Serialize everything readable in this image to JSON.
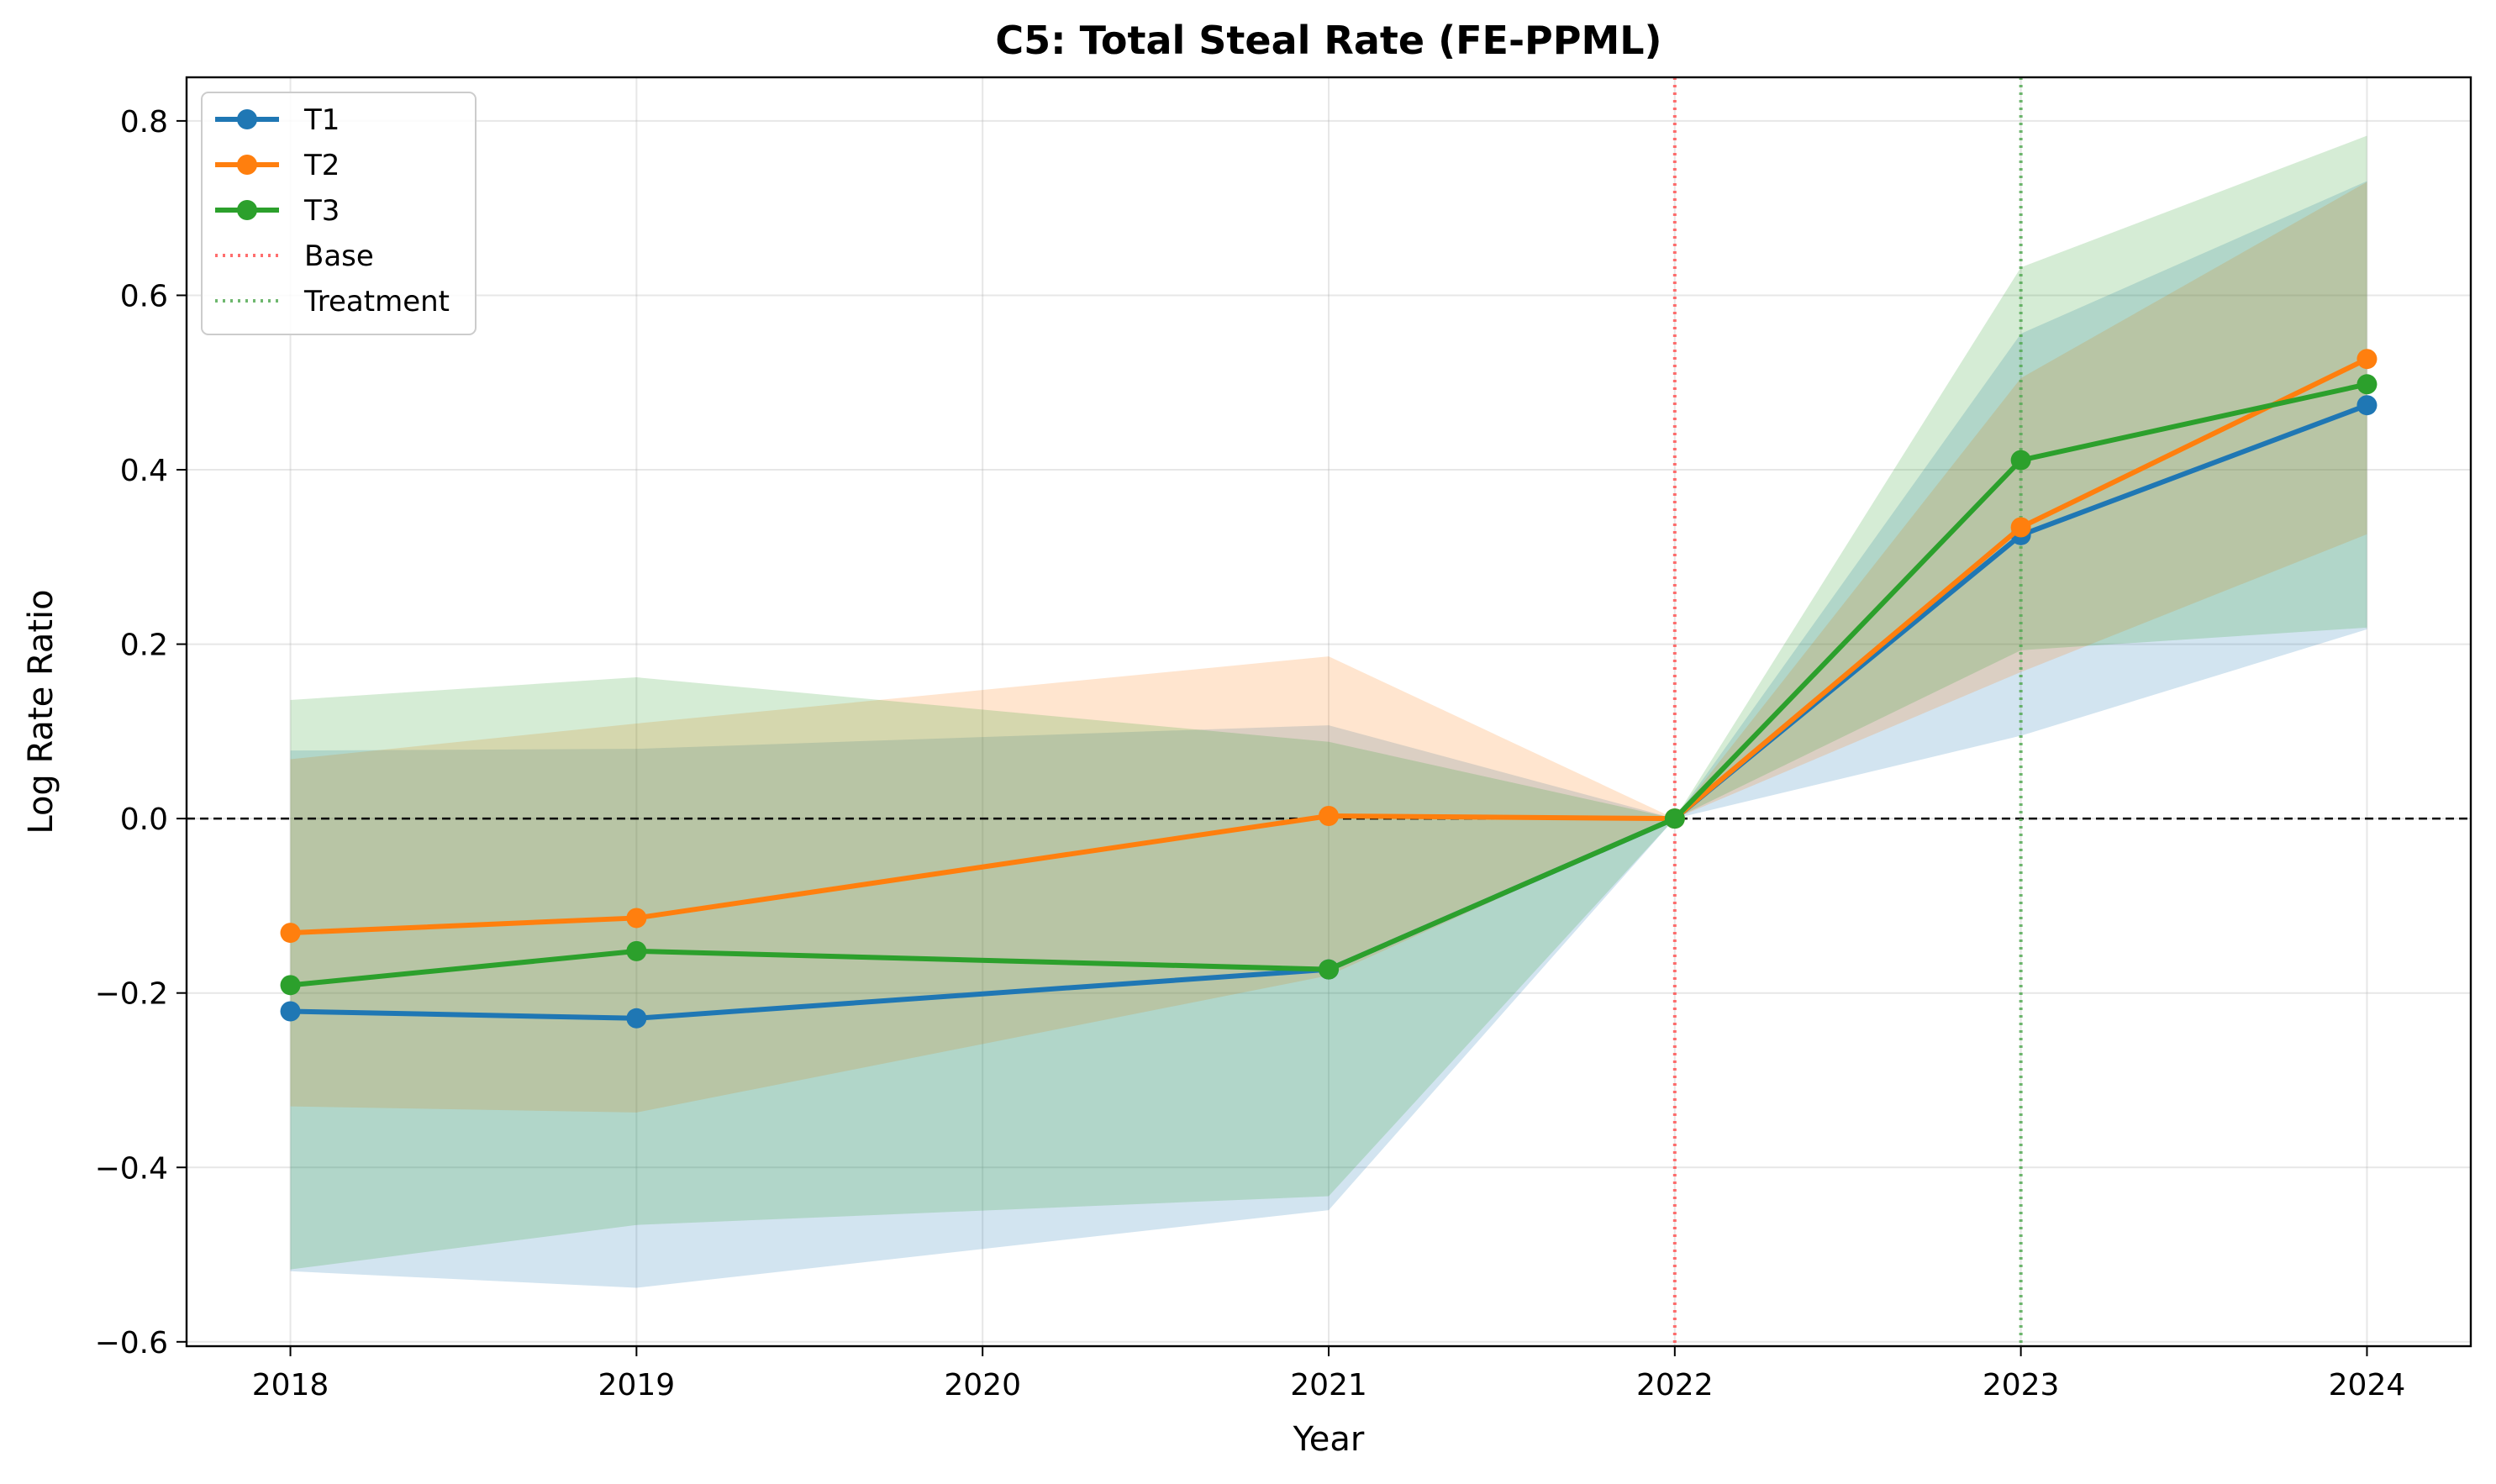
{
  "chart_data": {
    "type": "line",
    "title": "C5: Total Steal Rate (FE-PPML)",
    "xlabel": "Year",
    "ylabel": "Log Rate Ratio",
    "xlim": [
      2017.7,
      2024.3
    ],
    "ylim": [
      -0.605,
      0.85
    ],
    "xticks": [
      2018,
      2019,
      2020,
      2021,
      2022,
      2023,
      2024
    ],
    "xtick_labels": [
      "2018",
      "2019",
      "2020",
      "2021",
      "2022",
      "2023",
      "2024"
    ],
    "yticks": [
      -0.6,
      -0.4,
      -0.2,
      0.0,
      0.2,
      0.4,
      0.6,
      0.8
    ],
    "ytick_labels": [
      "−0.6",
      "−0.4",
      "−0.2",
      "0.0",
      "0.2",
      "0.4",
      "0.6",
      "0.8"
    ],
    "grid": true,
    "legend_position": "upper-left",
    "zero_line": {
      "y": 0,
      "color": "#000000",
      "style": "dashed"
    },
    "vlines": [
      {
        "name": "Base",
        "x": 2022,
        "color": "#ff5555"
      },
      {
        "name": "Treatment",
        "x": 2023,
        "color": "#55aa55"
      }
    ],
    "series": [
      {
        "name": "T1",
        "color": "#1f77b4",
        "x": [
          2018,
          2019,
          2021,
          2022,
          2023,
          2024
        ],
        "y": [
          -0.221,
          -0.229,
          -0.173,
          0.0,
          0.325,
          0.474
        ],
        "ci_lower": [
          -0.519,
          -0.538,
          -0.449,
          0.0,
          0.095,
          0.217
        ],
        "ci_upper": [
          0.078,
          0.08,
          0.107,
          0.0,
          0.556,
          0.731
        ]
      },
      {
        "name": "T2",
        "color": "#ff7f0e",
        "x": [
          2018,
          2019,
          2021,
          2022,
          2023,
          2024
        ],
        "y": [
          -0.131,
          -0.114,
          0.003,
          0.0,
          0.334,
          0.527
        ],
        "ci_lower": [
          -0.33,
          -0.337,
          -0.18,
          0.0,
          0.168,
          0.326
        ],
        "ci_upper": [
          0.068,
          0.109,
          0.186,
          0.0,
          0.505,
          0.73
        ]
      },
      {
        "name": "T3",
        "color": "#2ca02c",
        "x": [
          2018,
          2019,
          2021,
          2022,
          2023,
          2024
        ],
        "y": [
          -0.191,
          -0.152,
          -0.173,
          0.0,
          0.411,
          0.498
        ],
        "ci_lower": [
          -0.517,
          -0.466,
          -0.433,
          0.0,
          0.193,
          0.219
        ],
        "ci_upper": [
          0.136,
          0.162,
          0.088,
          0.0,
          0.632,
          0.783
        ]
      }
    ]
  }
}
